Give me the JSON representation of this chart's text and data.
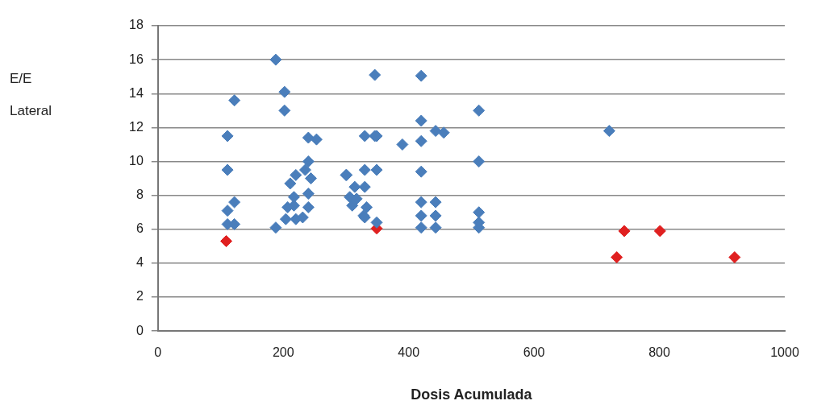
{
  "chart_data": {
    "type": "scatter",
    "xlabel": "Dosis Acumulada",
    "annotations": [
      "E/E",
      "Lateral"
    ],
    "xlim": [
      0,
      1000
    ],
    "xticks": [
      0,
      200,
      400,
      600,
      800,
      1000
    ],
    "ylim": [
      0,
      18
    ],
    "yticks": [
      0,
      2,
      4,
      6,
      8,
      10,
      12,
      14,
      16,
      18
    ],
    "grid": "y",
    "legend": false,
    "marker": "diamond",
    "series": [
      {
        "color": "#4a7ebb",
        "x": [
          111,
          111,
          122,
          122,
          111,
          111,
          122,
          188,
          202,
          202,
          188,
          204,
          220,
          231,
          217,
          207,
          217,
          240,
          240,
          211,
          220,
          240,
          244,
          235,
          240,
          253,
          301,
          300,
          330,
          330,
          306,
          314,
          310,
          333,
          328,
          346,
          346,
          330,
          349,
          420,
          390,
          420,
          420,
          443,
          456,
          512,
          512,
          420,
          349,
          317,
          330,
          349,
          420,
          443,
          420,
          443,
          420,
          443,
          512,
          512,
          512,
          720
        ],
        "values": [
          11.5,
          9.5,
          13.6,
          7.6,
          7.1,
          6.3,
          6.3,
          16,
          14.1,
          13,
          6.1,
          6.6,
          6.6,
          6.7,
          7.4,
          7.3,
          7.9,
          8.1,
          7.3,
          8.7,
          9.2,
          10,
          9,
          9.5,
          11.4,
          11.3,
          9.2,
          9.2,
          11.5,
          9.5,
          7.9,
          8.5,
          7.4,
          7.3,
          6.8,
          15.1,
          11.5,
          8.5,
          9.5,
          15.05,
          11,
          12.4,
          11.2,
          11.8,
          11.7,
          13,
          10,
          9.4,
          6.4,
          7.8,
          6.7,
          11.5,
          7.6,
          7.6,
          6.8,
          6.8,
          6.1,
          6.1,
          7,
          6.4,
          6.1,
          11.8
        ]
      },
      {
        "color": "#e02020",
        "x": [
          109,
          349,
          744,
          801,
          732,
          920
        ],
        "values": [
          5.3,
          6.05,
          5.9,
          5.9,
          4.35,
          4.35
        ]
      }
    ]
  }
}
